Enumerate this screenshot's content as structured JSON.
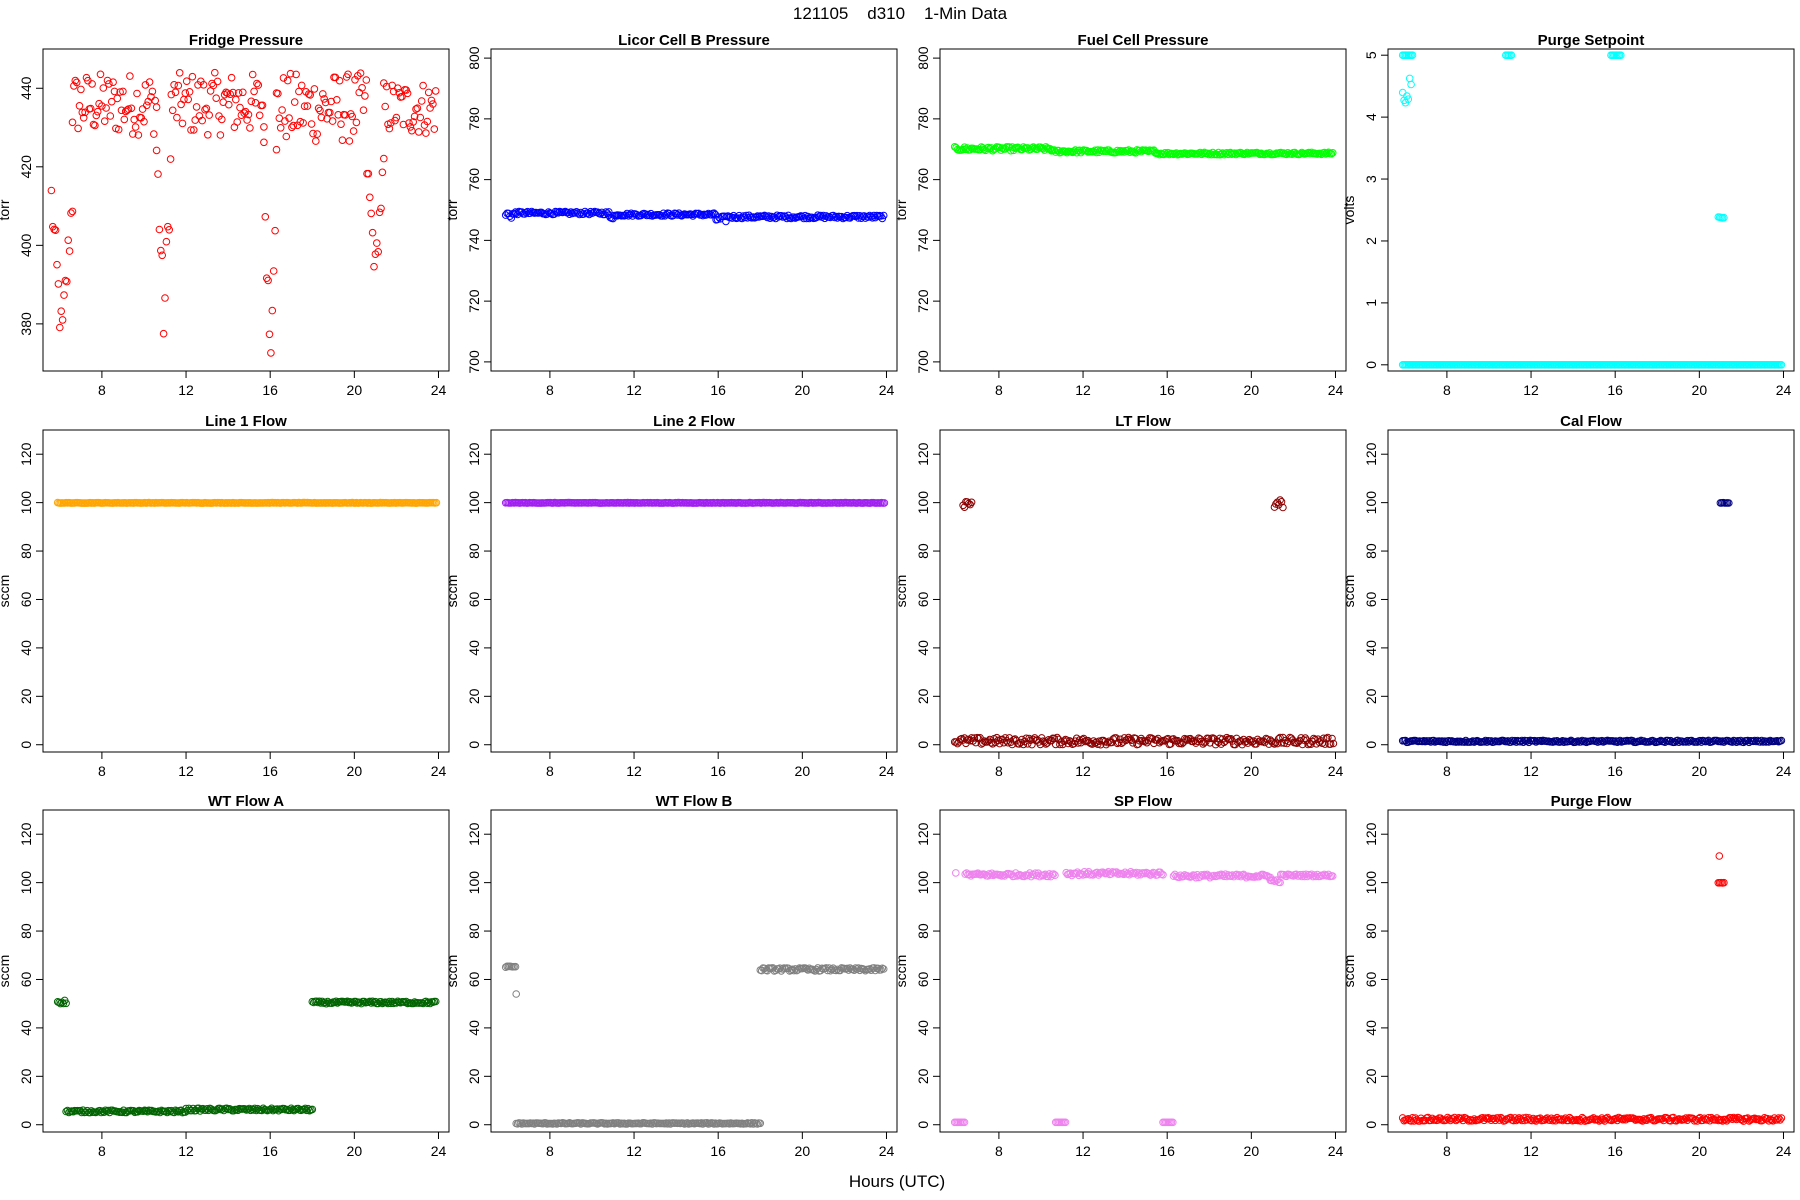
{
  "figure": {
    "title": "121105    d310    1-Min Data",
    "xlabel": "Hours (UTC)"
  },
  "chart_data": [
    {
      "type": "scatter",
      "title": "Fridge Pressure",
      "ylabel": "torr",
      "xlim": [
        5.2,
        24.5
      ],
      "ylim": [
        368,
        450
      ],
      "xticks": [
        8,
        12,
        16,
        20,
        24
      ],
      "yticks": [
        380,
        400,
        420,
        440
      ],
      "color": "#ff0000",
      "marker": "open-circle",
      "segments": [
        {
          "x_start": 5.6,
          "x_end": 6.6,
          "y_min": 376,
          "y_max": 412,
          "pattern": "dip"
        },
        {
          "x_start": 6.6,
          "x_end": 10.6,
          "y_min": 428,
          "y_max": 444,
          "pattern": "noise"
        },
        {
          "x_start": 10.6,
          "x_end": 11.3,
          "y_min": 380,
          "y_max": 424,
          "pattern": "dip"
        },
        {
          "x_start": 11.3,
          "x_end": 15.7,
          "y_min": 428,
          "y_max": 444,
          "pattern": "noise"
        },
        {
          "x_start": 15.7,
          "x_end": 16.3,
          "y_min": 374,
          "y_max": 420,
          "pattern": "dip"
        },
        {
          "x_start": 16.3,
          "x_end": 20.6,
          "y_min": 426,
          "y_max": 444,
          "pattern": "noise"
        },
        {
          "x_start": 20.6,
          "x_end": 21.4,
          "y_min": 394,
          "y_max": 420,
          "pattern": "dip"
        },
        {
          "x_start": 21.4,
          "x_end": 23.9,
          "y_min": 428,
          "y_max": 442,
          "pattern": "noise"
        }
      ]
    },
    {
      "type": "scatter",
      "title": "Licor Cell B Pressure",
      "ylabel": "torr",
      "xlim": [
        5.2,
        24.5
      ],
      "ylim": [
        697,
        803
      ],
      "xticks": [
        8,
        12,
        16,
        20,
        24
      ],
      "yticks": [
        700,
        720,
        740,
        760,
        780,
        800
      ],
      "color": "#0000ff",
      "marker": "open-circle",
      "segments": [
        {
          "x_start": 5.9,
          "x_end": 6.4,
          "y_min": 747,
          "y_max": 750,
          "pattern": "band"
        },
        {
          "x_start": 6.4,
          "x_end": 10.8,
          "y_min": 748.5,
          "y_max": 749.5,
          "pattern": "band"
        },
        {
          "x_start": 10.8,
          "x_end": 11.2,
          "y_min": 747,
          "y_max": 749,
          "pattern": "band"
        },
        {
          "x_start": 11.2,
          "x_end": 15.9,
          "y_min": 748,
          "y_max": 749,
          "pattern": "band"
        },
        {
          "x_start": 15.9,
          "x_end": 16.4,
          "y_min": 746,
          "y_max": 748,
          "pattern": "band"
        },
        {
          "x_start": 16.4,
          "x_end": 23.9,
          "y_min": 747.2,
          "y_max": 748.3,
          "pattern": "band"
        }
      ]
    },
    {
      "type": "scatter",
      "title": "Fuel Cell Pressure",
      "ylabel": "torr",
      "xlim": [
        5.2,
        24.5
      ],
      "ylim": [
        697,
        803
      ],
      "xticks": [
        8,
        12,
        16,
        20,
        24
      ],
      "yticks": [
        700,
        720,
        740,
        760,
        780,
        800
      ],
      "color": "#00ff00",
      "marker": "open-circle",
      "segments": [
        {
          "x_start": 5.9,
          "x_end": 10.5,
          "y_min": 769.5,
          "y_max": 770.8,
          "pattern": "band"
        },
        {
          "x_start": 10.5,
          "x_end": 15.5,
          "y_min": 768.8,
          "y_max": 769.8,
          "pattern": "band"
        },
        {
          "x_start": 15.5,
          "x_end": 19.0,
          "y_min": 768.2,
          "y_max": 769.0,
          "pattern": "band"
        },
        {
          "x_start": 19.0,
          "x_end": 23.9,
          "y_min": 768.3,
          "y_max": 769.0,
          "pattern": "band"
        }
      ]
    },
    {
      "type": "scatter",
      "title": "Purge Setpoint",
      "ylabel": "volts",
      "xlim": [
        5.2,
        24.5
      ],
      "ylim": [
        -0.1,
        5.1
      ],
      "xticks": [
        8,
        12,
        16,
        20,
        24
      ],
      "yticks": [
        0,
        1,
        2,
        3,
        4,
        5
      ],
      "color": "#00ffff",
      "marker": "open-circle",
      "segments": [
        {
          "x_start": 5.9,
          "x_end": 23.9,
          "y_min": 0,
          "y_max": 0,
          "pattern": "band"
        },
        {
          "x_start": 5.9,
          "x_end": 6.4,
          "y_min": 5,
          "y_max": 5,
          "pattern": "band"
        },
        {
          "x_start": 5.9,
          "x_end": 6.3,
          "y_min": 4.05,
          "y_max": 4.65,
          "pattern": "noise"
        },
        {
          "x_start": 10.8,
          "x_end": 11.1,
          "y_min": 5,
          "y_max": 5,
          "pattern": "band"
        },
        {
          "x_start": 15.8,
          "x_end": 16.3,
          "y_min": 5,
          "y_max": 5,
          "pattern": "band"
        },
        {
          "x_start": 20.9,
          "x_end": 21.2,
          "y_min": 2.37,
          "y_max": 2.39,
          "pattern": "band"
        }
      ]
    },
    {
      "type": "scatter",
      "title": "Line 1 Flow",
      "ylabel": "sccm",
      "xlim": [
        5.2,
        24.5
      ],
      "ylim": [
        -3,
        130
      ],
      "xticks": [
        8,
        12,
        16,
        20,
        24
      ],
      "yticks": [
        0,
        20,
        40,
        60,
        80,
        100,
        120
      ],
      "color": "#ffa500",
      "marker": "open-circle",
      "segments": [
        {
          "x_start": 5.9,
          "x_end": 23.9,
          "y_min": 99.8,
          "y_max": 100,
          "pattern": "band"
        }
      ]
    },
    {
      "type": "scatter",
      "title": "Line 2 Flow",
      "ylabel": "sccm",
      "xlim": [
        5.2,
        24.5
      ],
      "ylim": [
        -3,
        130
      ],
      "xticks": [
        8,
        12,
        16,
        20,
        24
      ],
      "yticks": [
        0,
        20,
        40,
        60,
        80,
        100,
        120
      ],
      "color": "#a020f0",
      "marker": "open-circle",
      "segments": [
        {
          "x_start": 5.9,
          "x_end": 23.9,
          "y_min": 99.8,
          "y_max": 100,
          "pattern": "band"
        }
      ]
    },
    {
      "type": "scatter",
      "title": "LT Flow",
      "ylabel": "sccm",
      "xlim": [
        5.2,
        24.5
      ],
      "ylim": [
        -3,
        130
      ],
      "xticks": [
        8,
        12,
        16,
        20,
        24
      ],
      "yticks": [
        0,
        20,
        40,
        60,
        80,
        100,
        120
      ],
      "color": "#8b0000",
      "marker": "open-circle",
      "segments": [
        {
          "x_start": 5.9,
          "x_end": 23.9,
          "y_min": 0,
          "y_max": 3,
          "pattern": "noise"
        },
        {
          "x_start": 6.3,
          "x_end": 6.7,
          "y_min": 98,
          "y_max": 101.5,
          "pattern": "noise"
        },
        {
          "x_start": 21.1,
          "x_end": 21.5,
          "y_min": 97.5,
          "y_max": 101.5,
          "pattern": "noise"
        }
      ]
    },
    {
      "type": "scatter",
      "title": "Cal Flow",
      "ylabel": "sccm",
      "xlim": [
        5.2,
        24.5
      ],
      "ylim": [
        -3,
        130
      ],
      "xticks": [
        8,
        12,
        16,
        20,
        24
      ],
      "yticks": [
        0,
        20,
        40,
        60,
        80,
        100,
        120
      ],
      "color": "#000080",
      "marker": "open-circle",
      "segments": [
        {
          "x_start": 5.9,
          "x_end": 23.9,
          "y_min": 1,
          "y_max": 1.8,
          "pattern": "band"
        },
        {
          "x_start": 21.0,
          "x_end": 21.4,
          "y_min": 99.8,
          "y_max": 100,
          "pattern": "band"
        }
      ]
    },
    {
      "type": "scatter",
      "title": "WT Flow A",
      "ylabel": "sccm",
      "xlim": [
        5.2,
        24.5
      ],
      "ylim": [
        -3,
        130
      ],
      "xticks": [
        8,
        12,
        16,
        20,
        24
      ],
      "yticks": [
        0,
        20,
        40,
        60,
        80,
        100,
        120
      ],
      "color": "#006400",
      "marker": "open-circle",
      "segments": [
        {
          "x_start": 5.9,
          "x_end": 6.3,
          "y_min": 50,
          "y_max": 51.5,
          "pattern": "band"
        },
        {
          "x_start": 6.3,
          "x_end": 12.0,
          "y_min": 5,
          "y_max": 6,
          "pattern": "band"
        },
        {
          "x_start": 12.0,
          "x_end": 18.0,
          "y_min": 5.7,
          "y_max": 6.8,
          "pattern": "band"
        },
        {
          "x_start": 18.0,
          "x_end": 23.9,
          "y_min": 50,
          "y_max": 51,
          "pattern": "band"
        }
      ]
    },
    {
      "type": "scatter",
      "title": "WT Flow B",
      "ylabel": "sccm",
      "xlim": [
        5.2,
        24.5
      ],
      "ylim": [
        -3,
        130
      ],
      "xticks": [
        8,
        12,
        16,
        20,
        24
      ],
      "yticks": [
        0,
        20,
        40,
        60,
        80,
        100,
        120
      ],
      "color": "#808080",
      "marker": "open-circle",
      "segments": [
        {
          "x_start": 5.9,
          "x_end": 6.4,
          "y_min": 65,
          "y_max": 65.5,
          "pattern": "band"
        },
        {
          "x_start": 6.4,
          "x_end": 18.0,
          "y_min": 0.3,
          "y_max": 0.8,
          "pattern": "band"
        },
        {
          "x_start": 18.0,
          "x_end": 23.9,
          "y_min": 63.5,
          "y_max": 64.8,
          "pattern": "band"
        }
      ],
      "points": [
        {
          "x": 6.4,
          "y": 54
        }
      ]
    },
    {
      "type": "scatter",
      "title": "SP Flow",
      "ylabel": "sccm",
      "xlim": [
        5.2,
        24.5
      ],
      "ylim": [
        -3,
        130
      ],
      "xticks": [
        8,
        12,
        16,
        20,
        24
      ],
      "yticks": [
        0,
        20,
        40,
        60,
        80,
        100,
        120
      ],
      "color": "#ee82ee",
      "marker": "open-circle",
      "segments": [
        {
          "x_start": 5.9,
          "x_end": 6.4,
          "y_min": 1,
          "y_max": 1,
          "pattern": "band"
        },
        {
          "x_start": 6.4,
          "x_end": 10.7,
          "y_min": 102.5,
          "y_max": 104,
          "pattern": "band"
        },
        {
          "x_start": 10.7,
          "x_end": 11.2,
          "y_min": 1,
          "y_max": 1,
          "pattern": "band"
        },
        {
          "x_start": 11.2,
          "x_end": 15.8,
          "y_min": 103,
          "y_max": 104.5,
          "pattern": "band"
        },
        {
          "x_start": 15.8,
          "x_end": 16.3,
          "y_min": 1,
          "y_max": 1,
          "pattern": "band"
        },
        {
          "x_start": 16.3,
          "x_end": 20.9,
          "y_min": 102,
          "y_max": 103.5,
          "pattern": "band"
        },
        {
          "x_start": 20.9,
          "x_end": 21.4,
          "y_min": 100,
          "y_max": 101.5,
          "pattern": "band"
        },
        {
          "x_start": 21.4,
          "x_end": 23.9,
          "y_min": 102.5,
          "y_max": 103.5,
          "pattern": "band"
        }
      ],
      "points": [
        {
          "x": 5.95,
          "y": 104
        }
      ]
    },
    {
      "type": "scatter",
      "title": "Purge Flow",
      "ylabel": "sccm",
      "xlim": [
        5.2,
        24.5
      ],
      "ylim": [
        -3,
        130
      ],
      "xticks": [
        8,
        12,
        16,
        20,
        24
      ],
      "yticks": [
        0,
        20,
        40,
        60,
        80,
        100,
        120
      ],
      "color": "#ff0000",
      "marker": "open-circle",
      "segments": [
        {
          "x_start": 5.9,
          "x_end": 23.9,
          "y_min": 1.5,
          "y_max": 3,
          "pattern": "noise"
        },
        {
          "x_start": 20.9,
          "x_end": 21.2,
          "y_min": 99.8,
          "y_max": 100,
          "pattern": "band"
        }
      ],
      "points": [
        {
          "x": 20.95,
          "y": 111
        }
      ]
    }
  ]
}
